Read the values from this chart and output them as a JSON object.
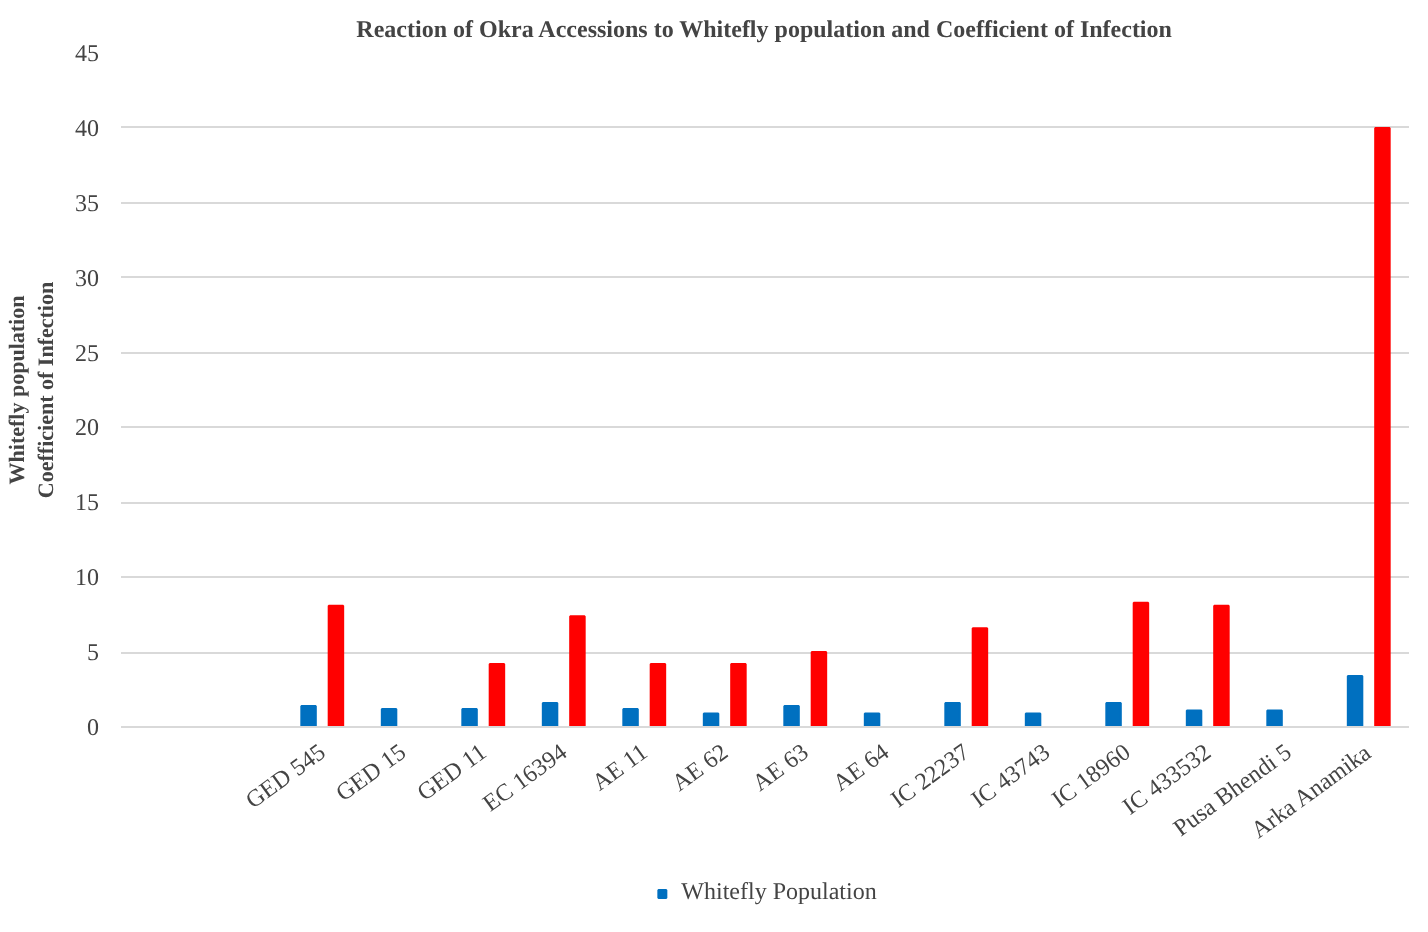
{
  "chart_data": {
    "type": "bar",
    "title": "Reaction of Okra Accessions to Whitefly population and Coefficient of Infection",
    "ylabel": "Whitefly population\nCoefficient of Infection",
    "categories": [
      null,
      null,
      "GED 545",
      "GED 15",
      "GED 11",
      "EC 16394",
      "AE 11",
      "AE 62",
      "AE 63",
      "AE 64",
      "IC 22237",
      "IC 43743",
      "IC 18960",
      "IC 433532",
      "Pusa Bhendi 5",
      "Arka Anamika"
    ],
    "series": [
      {
        "name": "Whitefly Population",
        "color": "#0070c0",
        "values": [
          null,
          null,
          1.4,
          1.2,
          1.2,
          1.6,
          1.2,
          0.9,
          1.4,
          0.9,
          1.6,
          0.9,
          1.6,
          1.1,
          1.1,
          3.4
        ]
      },
      {
        "color": "#ff0000",
        "values": [
          null,
          null,
          8.1,
          null,
          4.2,
          7.4,
          4.2,
          4.2,
          5.0,
          null,
          6.6,
          null,
          8.3,
          8.1,
          null,
          40
        ]
      }
    ],
    "ylim": [
      0,
      45
    ],
    "yticks": [
      0,
      5,
      10,
      15,
      20,
      25,
      30,
      35,
      40,
      45
    ],
    "grid": "y",
    "legend": "bottom"
  }
}
